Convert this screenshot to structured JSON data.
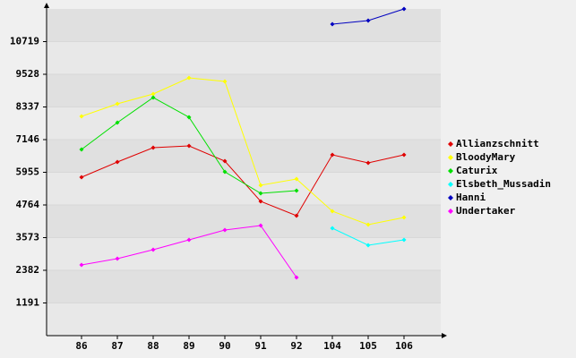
{
  "chart_data": {
    "type": "line",
    "categories": [
      "86",
      "87",
      "88",
      "89",
      "90",
      "91",
      "92",
      "104",
      "105",
      "106"
    ],
    "series": [
      {
        "name": "Allianzschnitt",
        "color": "#e00000",
        "values": [
          5776,
          6330,
          6852,
          6918,
          6363,
          4895,
          4373,
          6591,
          6298,
          6591
        ]
      },
      {
        "name": "BloodyMary",
        "color": "#ffff00",
        "values": [
          7994,
          8451,
          8810,
          9398,
          9267,
          5482,
          5710,
          4536,
          4046,
          4307
        ]
      },
      {
        "name": "Caturix",
        "color": "#00e000",
        "values": [
          6787,
          7766,
          8680,
          7962,
          5971,
          5188,
          5286,
          null,
          null,
          null
        ]
      },
      {
        "name": "Elsbeth_Mussadin",
        "color": "#00ffff",
        "values": [
          null,
          null,
          null,
          null,
          null,
          null,
          null,
          3916,
          3296,
          3491
        ]
      },
      {
        "name": "Hanni",
        "color": "#0000c0",
        "values": [
          null,
          null,
          null,
          null,
          null,
          null,
          null,
          11356,
          11486,
          11910
        ]
      },
      {
        "name": "Undertaker",
        "color": "#ff00ff",
        "values": [
          2578,
          2806,
          3133,
          3491,
          3850,
          4014,
          2121,
          null,
          null,
          null
        ]
      }
    ],
    "ylim": [
      0,
      11910
    ],
    "yticks": [
      1191,
      2382,
      3573,
      4764,
      5955,
      7146,
      8337,
      9528,
      10719
    ],
    "grid": true
  }
}
